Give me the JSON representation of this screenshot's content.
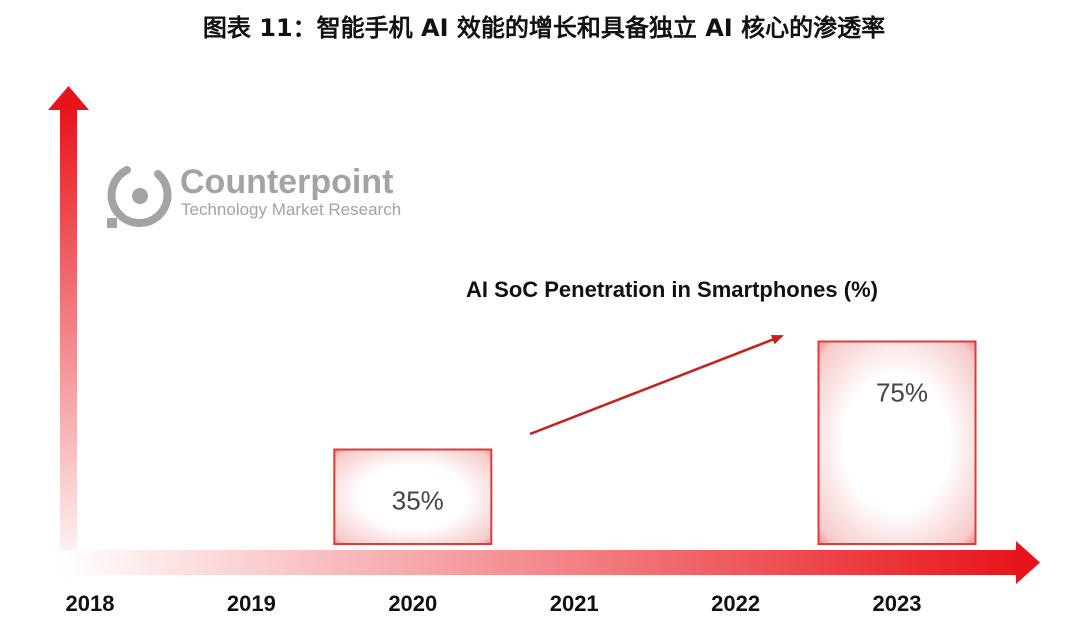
{
  "figure_title": "图表 11：智能手机 AI 效能的增长和具备独立 AI 核心的渗透率",
  "logo": {
    "brand": "Counterpoint",
    "tagline": "Technology Market Research"
  },
  "colors": {
    "accent": "#e8141b",
    "arrow_dark": "#c81e1e",
    "bar_border": "#e03a3a",
    "bar_inner": "#fadbdb",
    "logo_gray": "#a3a3a3"
  },
  "chart_data": {
    "type": "bar",
    "title": "AI SoC Penetration in Smartphones (%)",
    "xlabel": "",
    "ylabel": "",
    "categories": [
      "2018",
      "2019",
      "2020",
      "2021",
      "2022",
      "2023"
    ],
    "series": [
      {
        "values": [
          null,
          null,
          35,
          null,
          null,
          75
        ]
      }
    ],
    "data_labels": [
      null,
      null,
      "35%",
      null,
      null,
      "75%"
    ],
    "ylim": [
      0,
      100
    ],
    "grid": false,
    "trend_arrow": {
      "from_category": "2021",
      "to_category": "2022"
    }
  }
}
